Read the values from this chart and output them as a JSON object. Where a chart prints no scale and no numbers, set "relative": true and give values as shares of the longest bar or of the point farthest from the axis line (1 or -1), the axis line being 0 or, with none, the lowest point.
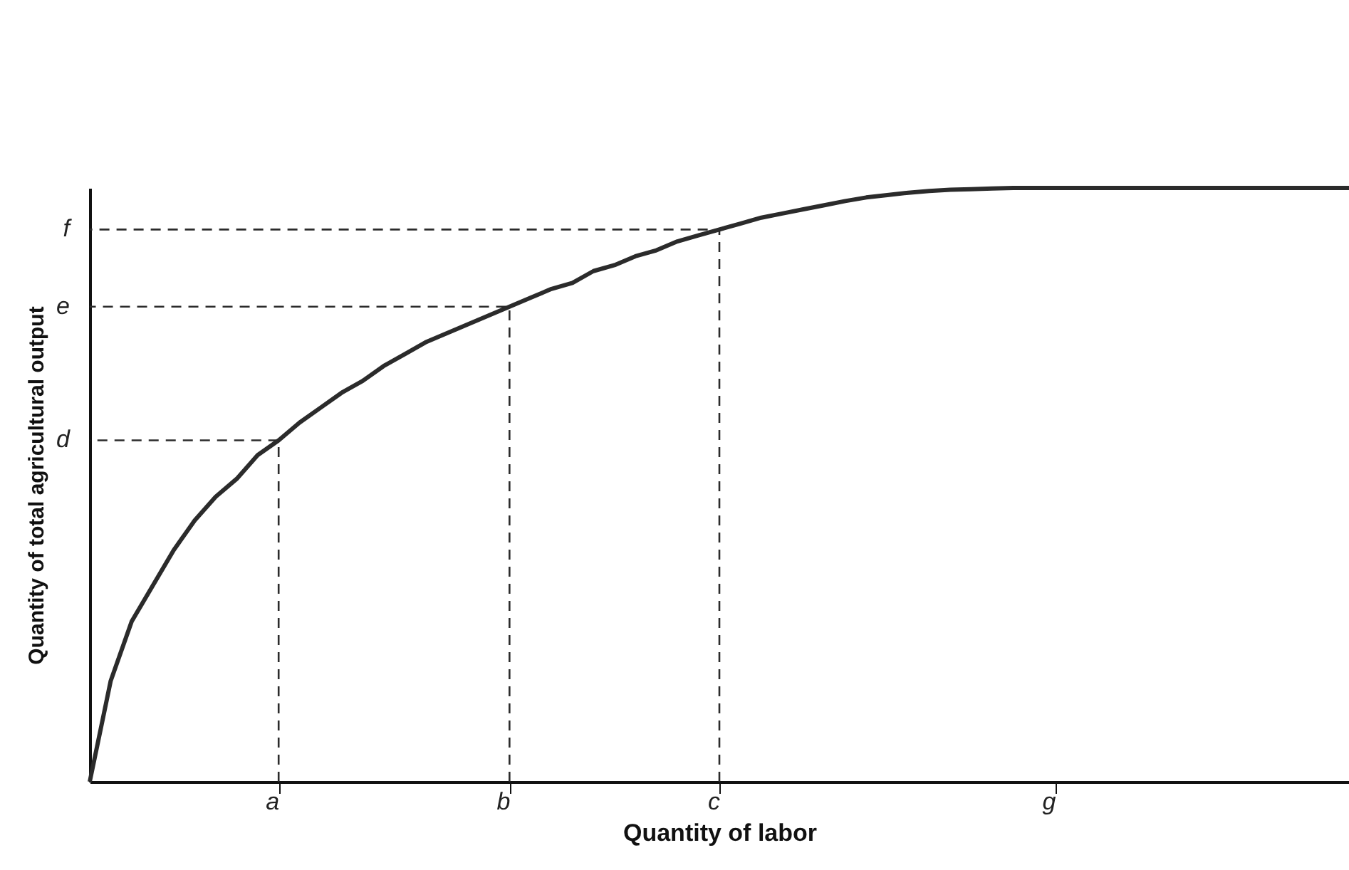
{
  "chart_data": {
    "type": "line",
    "relative": true,
    "xlabel": "Quantity of labor",
    "ylabel": "Quantity of total agricultural output",
    "categories": [
      null,
      null,
      null,
      null,
      null,
      null,
      null,
      null,
      null,
      "a",
      null,
      null,
      null,
      null,
      null,
      null,
      null,
      null,
      null,
      null,
      "b",
      null,
      null,
      null,
      null,
      null,
      null,
      null,
      null,
      null,
      "c",
      null,
      null,
      null,
      null,
      null,
      null,
      null,
      null,
      null,
      null,
      null,
      null,
      null,
      null,
      null,
      "g",
      null,
      null,
      null,
      null,
      null,
      null,
      null,
      null,
      null,
      null,
      null,
      null,
      null,
      null
    ],
    "series": [
      {
        "color": "#2b2b2b",
        "line_style": "solid",
        "values": [
          0,
          0.17,
          0.27,
          0.33,
          0.39,
          0.44,
          0.48,
          0.51,
          0.55,
          0.575,
          0.605,
          0.63,
          0.655,
          0.675,
          0.7,
          0.72,
          0.74,
          0.755,
          0.77,
          0.785,
          0.8,
          0.815,
          0.83,
          0.84,
          0.86,
          0.87,
          0.885,
          0.895,
          0.91,
          0.92,
          0.93,
          0.94,
          0.95,
          0.957,
          0.964,
          0.971,
          0.978,
          0.984,
          0.988,
          0.992,
          0.995,
          0.997,
          0.998,
          0.999,
          1,
          1,
          1,
          1,
          1,
          1,
          1,
          1,
          1,
          1,
          1,
          1,
          1,
          1,
          1,
          1,
          1
        ]
      }
    ],
    "ref_lines": [
      {
        "axis": "y",
        "value": 0.575,
        "label": "d",
        "color": "#2b2b2b",
        "line_style": "dashed"
      },
      {
        "axis": "y",
        "value": 0.8,
        "label": "e",
        "color": "#2b2b2b",
        "line_style": "dashed"
      },
      {
        "axis": "y",
        "value": 0.93,
        "label": "f",
        "color": "#2b2b2b",
        "line_style": "dashed"
      }
    ]
  }
}
